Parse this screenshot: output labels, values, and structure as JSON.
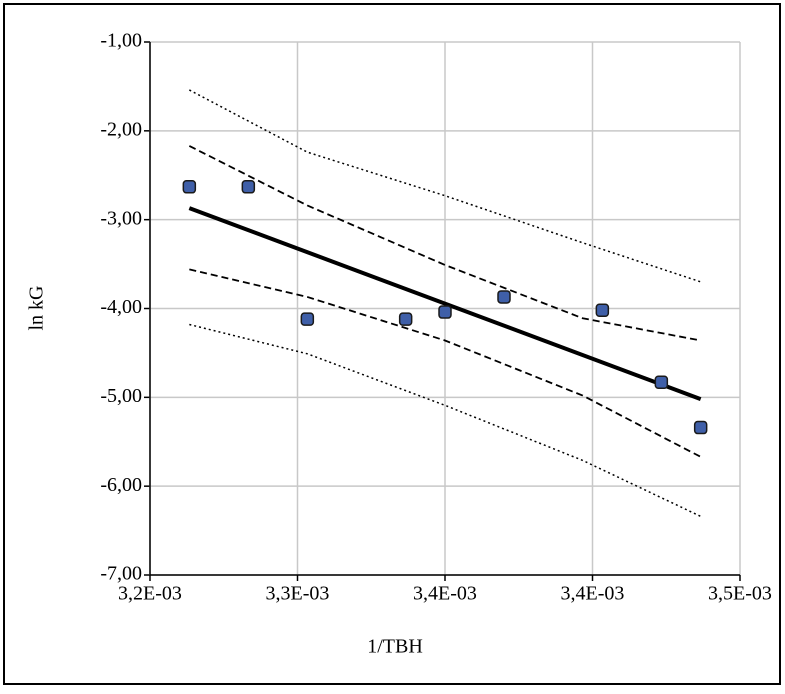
{
  "chart_data": {
    "type": "scatter",
    "x_label": "1/TBH",
    "y_label": "ln kG",
    "xlim": [
      0.0032,
      0.0035
    ],
    "xticks": [
      {
        "value": 0.0032,
        "label": "3,2E-03"
      },
      {
        "value": 0.003275,
        "label": "3,3E-03"
      },
      {
        "value": 0.00335,
        "label": "3,4E-03"
      },
      {
        "value": 0.003425,
        "label": "3,4E-03"
      },
      {
        "value": 0.0035,
        "label": "3,5E-03"
      }
    ],
    "ylim": [
      -7,
      -1
    ],
    "yticks": [
      {
        "value": -1,
        "label": "-1,00"
      },
      {
        "value": -2,
        "label": "-2,00"
      },
      {
        "value": -3,
        "label": "-3,00"
      },
      {
        "value": -4,
        "label": "-4,00"
      },
      {
        "value": -5,
        "label": "-5,00"
      },
      {
        "value": -6,
        "label": "-6,00"
      },
      {
        "value": -7,
        "label": "-7,00"
      }
    ],
    "grid": true,
    "series": [
      {
        "kind": "points",
        "color": "#3f5fa8",
        "x": [
          0.00322,
          0.00325,
          0.00328,
          0.00333,
          0.00335,
          0.00338,
          0.00343,
          0.00346,
          0.00348
        ],
        "values": [
          -2.63,
          -2.63,
          -4.12,
          -4.12,
          -4.04,
          -3.87,
          -4.02,
          -4.83,
          -5.34
        ]
      },
      {
        "kind": "line",
        "style": "solid",
        "color": "#000000",
        "x": [
          0.00322,
          0.00348
        ],
        "values": [
          -2.87,
          -5.02
        ]
      },
      {
        "kind": "line",
        "style": "dashed",
        "color": "#000000",
        "x": [
          0.00322,
          0.00328,
          0.00335,
          0.00342,
          0.00348
        ],
        "values": [
          -2.17,
          -2.84,
          -3.51,
          -4.11,
          -4.36
        ]
      },
      {
        "kind": "line",
        "style": "dashed",
        "color": "#000000",
        "x": [
          0.00322,
          0.00328,
          0.00335,
          0.00342,
          0.00348
        ],
        "values": [
          -3.56,
          -3.87,
          -4.36,
          -4.98,
          -5.67
        ]
      },
      {
        "kind": "line",
        "style": "dotted",
        "color": "#000000",
        "x": [
          0.00322,
          0.00328,
          0.00335,
          0.00342,
          0.00348
        ],
        "values": [
          -1.54,
          -2.24,
          -2.73,
          -3.26,
          -3.7
        ]
      },
      {
        "kind": "line",
        "style": "dotted",
        "color": "#000000",
        "x": [
          0.00322,
          0.00328,
          0.00335,
          0.00342,
          0.00348
        ],
        "values": [
          -4.18,
          -4.51,
          -5.09,
          -5.71,
          -6.34
        ]
      }
    ]
  }
}
